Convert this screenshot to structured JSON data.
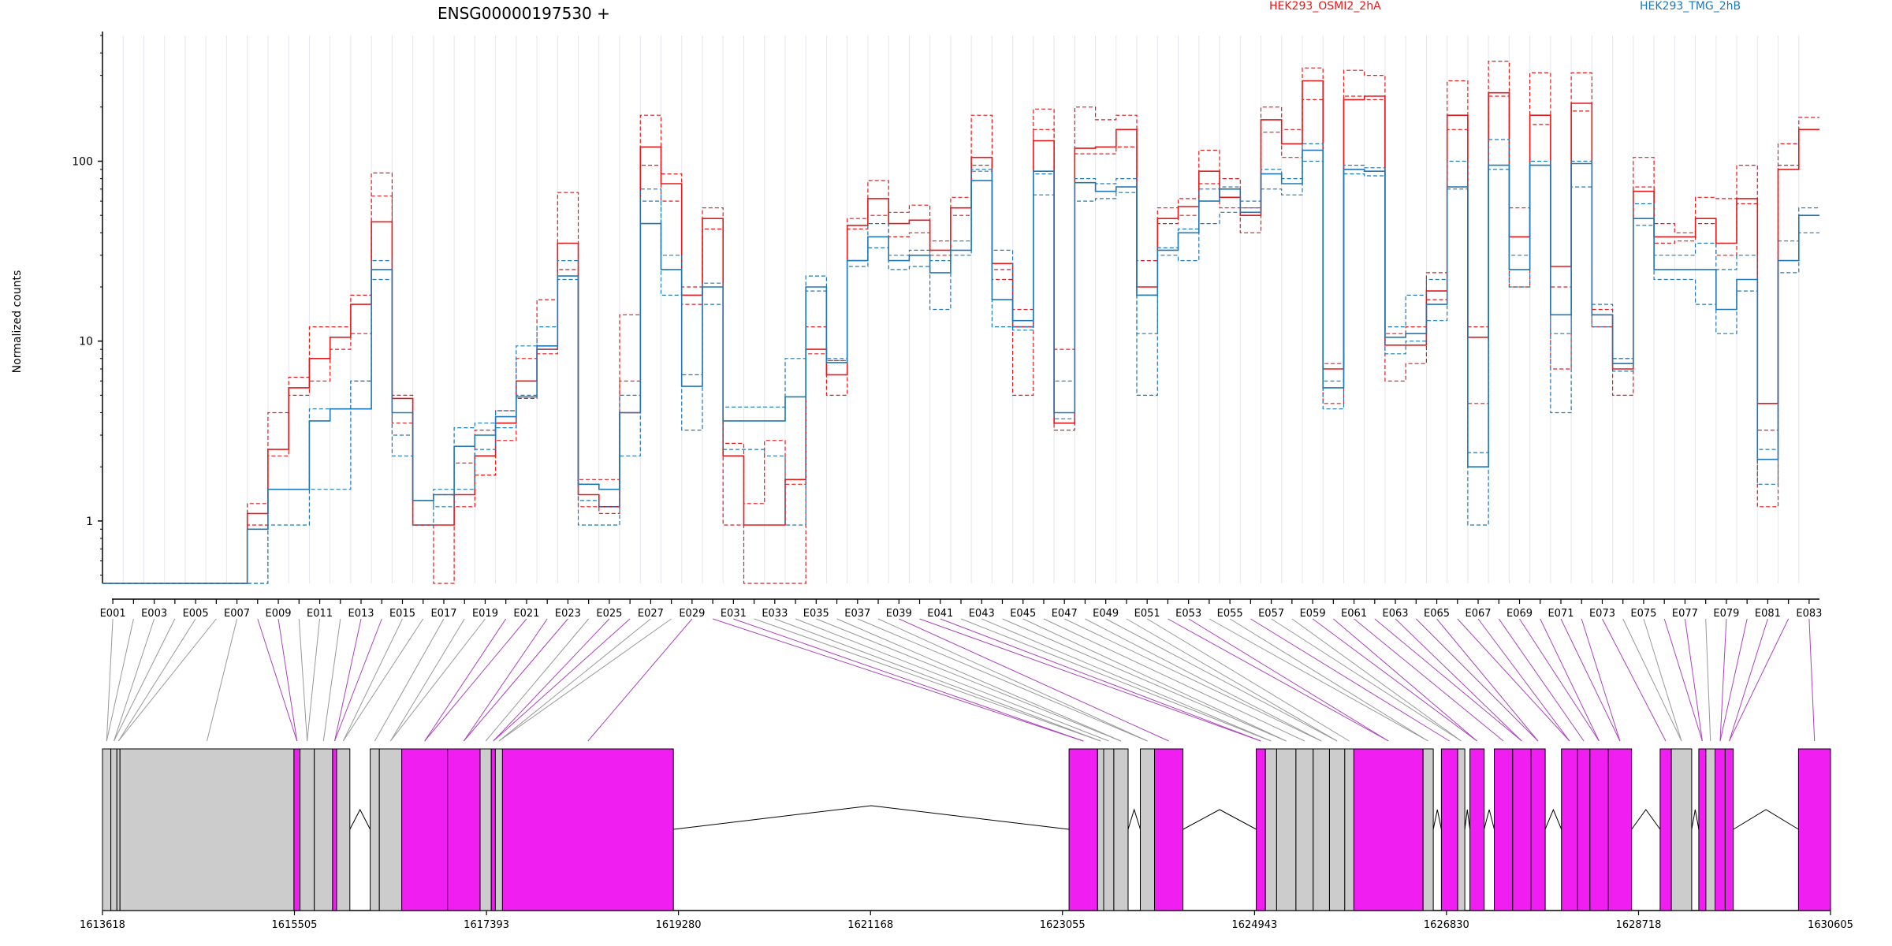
{
  "title": "ENSG00000197530 +",
  "colors": {
    "osmi": "#e31a1c",
    "tmg": "#1f78b4",
    "exon_fill": "#cccccc",
    "exon_de": "#f01ef0",
    "connector_plain": "#999999",
    "connector_de": "#aa44bb"
  },
  "chart_data": [
    {
      "type": "line",
      "ylabel": "Normalized counts",
      "yscale": "log",
      "ylim": [
        0.45,
        500
      ],
      "yticks": [
        "1",
        "10",
        "100"
      ],
      "legend_placement": "top",
      "categories": [
        "E001",
        "E002",
        "E003",
        "E004",
        "E005",
        "E006",
        "E007",
        "E008",
        "E009",
        "E010",
        "E011",
        "E012",
        "E013",
        "E014",
        "E015",
        "E016",
        "E017",
        "E018",
        "E019",
        "E020",
        "E021",
        "E022",
        "E023",
        "E024",
        "E025",
        "E026",
        "E027",
        "E028",
        "E029",
        "E030",
        "E031",
        "E032",
        "E033",
        "E034",
        "E035",
        "E036",
        "E037",
        "E038",
        "E039",
        "E040",
        "E041",
        "E042",
        "E043",
        "E044",
        "E045",
        "E046",
        "E047",
        "E048",
        "E049",
        "E050",
        "E051",
        "E052",
        "E053",
        "E054",
        "E055",
        "E056",
        "E057",
        "E058",
        "E059",
        "E060",
        "E061",
        "E062",
        "E063",
        "E064",
        "E065",
        "E066",
        "E067",
        "E068",
        "E069",
        "E070",
        "E071",
        "E072",
        "E073",
        "E074",
        "E075",
        "E076",
        "E077",
        "E078",
        "E079",
        "E080",
        "E081",
        "E082",
        "E083"
      ],
      "xtick_labels": [
        "E001",
        "E003",
        "E005",
        "E007",
        "E009",
        "E011",
        "E013",
        "E015",
        "E017",
        "E019",
        "E021",
        "E023",
        "E025",
        "E027",
        "E029",
        "E031",
        "E033",
        "E035",
        "E037",
        "E039",
        "E041",
        "E043",
        "E045",
        "E047",
        "E049",
        "E051",
        "E053",
        "E055",
        "E057",
        "E059",
        "E061",
        "E063",
        "E065",
        "E067",
        "E069",
        "E071",
        "E073",
        "E075",
        "E077",
        "E079",
        "E081",
        "E083"
      ],
      "series": [
        {
          "name": "HEK293_OSMI2_2hA",
          "color": "#e31a1c",
          "style": "solid",
          "values": [
            0.45,
            0.45,
            0.45,
            0.45,
            0.45,
            0.45,
            0.45,
            1.1,
            2.5,
            5.5,
            8,
            10.5,
            16,
            46,
            4.8,
            0.95,
            0.95,
            1.4,
            2.3,
            3.5,
            6,
            9,
            35,
            1.4,
            1.2,
            4,
            120,
            75,
            18,
            48,
            2.3,
            0.95,
            0.95,
            1.7,
            9,
            6.5,
            44,
            62,
            45,
            47,
            32,
            55,
            105,
            27,
            12,
            130,
            3.5,
            118,
            120,
            150,
            20,
            48,
            56,
            88,
            63,
            50,
            170,
            125,
            280,
            7,
            220,
            230,
            9.5,
            9.5,
            19,
            180,
            10.5,
            240,
            38,
            180,
            26,
            210,
            14,
            7,
            68,
            38,
            38,
            48,
            35,
            62,
            4.5,
            90,
            150
          ]
        },
        {
          "name": "HEK293_OSMI2_2hA",
          "color": "#e31a1c",
          "style": "dashed",
          "values": [
            0.45,
            0.45,
            0.45,
            0.45,
            0.45,
            0.45,
            0.45,
            1.25,
            4,
            6.3,
            12,
            12,
            18,
            86,
            5,
            1.3,
            1.4,
            2.1,
            3.2,
            4.1,
            8,
            17,
            67,
            1.7,
            1.7,
            14,
            180,
            85,
            20,
            55,
            2.7,
            1.25,
            2.8,
            1.6,
            12,
            7.8,
            48,
            78,
            52,
            57,
            36,
            63,
            180,
            22,
            5,
            195,
            9,
            200,
            170,
            180,
            28,
            55,
            62,
            115,
            80,
            55,
            200,
            150,
            330,
            7.5,
            320,
            300,
            11,
            12,
            24,
            280,
            12,
            360,
            55,
            310,
            20,
            310,
            15,
            8,
            105,
            45,
            40,
            63,
            62,
            95,
            3.2,
            125,
            175
          ]
        },
        {
          "name": "HEK293_OSMI2_2hA",
          "color": "#e31a1c",
          "style": "dashed",
          "values": [
            0.45,
            0.45,
            0.45,
            0.45,
            0.45,
            0.45,
            0.45,
            0.95,
            2.3,
            5,
            6,
            9,
            11,
            64,
            3.5,
            0.95,
            0.45,
            1.2,
            1.8,
            2.8,
            4.8,
            8.5,
            25,
            1.2,
            1.1,
            6,
            95,
            60,
            16,
            42,
            0.95,
            0.45,
            0.45,
            0.45,
            8.5,
            5,
            42,
            50,
            38,
            40,
            30,
            50,
            95,
            25,
            15,
            150,
            3.2,
            110,
            110,
            120,
            18,
            45,
            50,
            75,
            55,
            40,
            145,
            105,
            220,
            4.5,
            230,
            220,
            6,
            7.5,
            17,
            150,
            4.5,
            230,
            20,
            160,
            7,
            190,
            12,
            5,
            72,
            35,
            36,
            45,
            30,
            58,
            1.2,
            95,
            150
          ]
        },
        {
          "name": "HEK293_TMG_2hB",
          "color": "#1f78b4",
          "style": "solid",
          "values": [
            0.45,
            0.45,
            0.45,
            0.45,
            0.45,
            0.45,
            0.45,
            0.9,
            1.5,
            1.5,
            3.6,
            4.2,
            4.2,
            25,
            4,
            1.3,
            1.4,
            2.6,
            3,
            3.8,
            4.9,
            9.4,
            23,
            1.6,
            1.5,
            4,
            45,
            25,
            5.6,
            20,
            3.6,
            3.6,
            3.6,
            4.9,
            20,
            7.6,
            28,
            38,
            28,
            30,
            24,
            32,
            78,
            17,
            13,
            88,
            4,
            76,
            68,
            72,
            18,
            32,
            40,
            60,
            70,
            52,
            85,
            75,
            115,
            5.5,
            90,
            88,
            10.5,
            11,
            16,
            72,
            2,
            95,
            25,
            95,
            14,
            97,
            14,
            7.5,
            48,
            25,
            25,
            25,
            15,
            22,
            2.2,
            28,
            50
          ]
        },
        {
          "name": "HEK293_TMG_2hB",
          "color": "#1f78b4",
          "style": "dashed",
          "values": [
            0.45,
            0.45,
            0.45,
            0.45,
            0.45,
            0.45,
            0.45,
            0.45,
            0.95,
            0.95,
            1.5,
            1.5,
            6,
            22,
            3,
            0.95,
            1.5,
            1.5,
            2.5,
            3.3,
            5,
            9,
            22,
            0.95,
            0.95,
            2.3,
            60,
            18,
            3.2,
            16,
            2.5,
            2.5,
            2.3,
            0.95,
            19,
            7.8,
            26,
            33,
            25,
            26,
            15,
            30,
            90,
            12,
            11.5,
            65,
            3.7,
            60,
            62,
            67,
            5,
            30,
            28,
            45,
            52,
            55,
            70,
            65,
            100,
            4.2,
            85,
            83,
            8.5,
            10,
            13,
            70,
            0.95,
            90,
            20,
            95,
            4,
            72,
            12,
            6.8,
            44,
            22,
            22,
            16,
            11,
            19,
            1.6,
            24,
            40
          ]
        },
        {
          "name": "HEK293_TMG_2hB",
          "color": "#1f78b4",
          "style": "dashed",
          "values": [
            0.45,
            0.45,
            0.45,
            0.45,
            0.45,
            0.45,
            0.45,
            0.45,
            1.5,
            1.5,
            4.2,
            4.2,
            6,
            28,
            2.3,
            1.3,
            1.2,
            3.3,
            3.5,
            4.1,
            9.4,
            12,
            28,
            1.3,
            1.2,
            5,
            70,
            30,
            6.5,
            21,
            4.3,
            4.3,
            4.3,
            8,
            23,
            8,
            28,
            45,
            30,
            32,
            28,
            36,
            88,
            32,
            12,
            85,
            6,
            80,
            75,
            80,
            11,
            33,
            42,
            70,
            72,
            60,
            90,
            80,
            125,
            6,
            95,
            92,
            12,
            18,
            22,
            100,
            2.4,
            132,
            30,
            100,
            11,
            100,
            16,
            8,
            58,
            30,
            30,
            35,
            25,
            30,
            2.5,
            36,
            55
          ]
        }
      ]
    },
    {
      "type": "gene_model",
      "x_range": [
        1613618,
        1630605
      ],
      "xtick_labels": [
        "1613618",
        "1615505",
        "1617393",
        "1619280",
        "1621168",
        "1623055",
        "1624943",
        "1626830",
        "1628718",
        "1630605"
      ],
      "exons": [
        {
          "start": 1613618,
          "end": 1613700,
          "de": false
        },
        {
          "start": 1613700,
          "end": 1613760,
          "de": false
        },
        {
          "start": 1613760,
          "end": 1613790,
          "de": false
        },
        {
          "start": 1613790,
          "end": 1615500,
          "de": false
        },
        {
          "start": 1615500,
          "end": 1615560,
          "de": true
        },
        {
          "start": 1615560,
          "end": 1615700,
          "de": false
        },
        {
          "start": 1615700,
          "end": 1615880,
          "de": false
        },
        {
          "start": 1615880,
          "end": 1615920,
          "de": true
        },
        {
          "start": 1615920,
          "end": 1616050,
          "de": false
        },
        {
          "start": 1616250,
          "end": 1616340,
          "de": false
        },
        {
          "start": 1616340,
          "end": 1616560,
          "de": false
        },
        {
          "start": 1616560,
          "end": 1617010,
          "de": true
        },
        {
          "start": 1617010,
          "end": 1617330,
          "de": true
        },
        {
          "start": 1617330,
          "end": 1617440,
          "de": false
        },
        {
          "start": 1617440,
          "end": 1617480,
          "de": true
        },
        {
          "start": 1617480,
          "end": 1617550,
          "de": false
        },
        {
          "start": 1617550,
          "end": 1619230,
          "de": true
        },
        {
          "start": 1623120,
          "end": 1623400,
          "de": true
        },
        {
          "start": 1623400,
          "end": 1623460,
          "de": false
        },
        {
          "start": 1623460,
          "end": 1623560,
          "de": false
        },
        {
          "start": 1623560,
          "end": 1623700,
          "de": false
        },
        {
          "start": 1623820,
          "end": 1623960,
          "de": false
        },
        {
          "start": 1623960,
          "end": 1624240,
          "de": true
        },
        {
          "start": 1624960,
          "end": 1625050,
          "de": true
        },
        {
          "start": 1625050,
          "end": 1625160,
          "de": false
        },
        {
          "start": 1625160,
          "end": 1625350,
          "de": false
        },
        {
          "start": 1625350,
          "end": 1625520,
          "de": false
        },
        {
          "start": 1625520,
          "end": 1625680,
          "de": false
        },
        {
          "start": 1625680,
          "end": 1625830,
          "de": false
        },
        {
          "start": 1625830,
          "end": 1625920,
          "de": false
        },
        {
          "start": 1625920,
          "end": 1626600,
          "de": true
        },
        {
          "start": 1626600,
          "end": 1626700,
          "de": false
        },
        {
          "start": 1626780,
          "end": 1626940,
          "de": true
        },
        {
          "start": 1626940,
          "end": 1627010,
          "de": false
        },
        {
          "start": 1627060,
          "end": 1627200,
          "de": true
        },
        {
          "start": 1627300,
          "end": 1627480,
          "de": true
        },
        {
          "start": 1627480,
          "end": 1627660,
          "de": true
        },
        {
          "start": 1627660,
          "end": 1627800,
          "de": true
        },
        {
          "start": 1627960,
          "end": 1628120,
          "de": true
        },
        {
          "start": 1628120,
          "end": 1628240,
          "de": true
        },
        {
          "start": 1628240,
          "end": 1628420,
          "de": true
        },
        {
          "start": 1628420,
          "end": 1628650,
          "de": true
        },
        {
          "start": 1628930,
          "end": 1629040,
          "de": true
        },
        {
          "start": 1629040,
          "end": 1629240,
          "de": false
        },
        {
          "start": 1629310,
          "end": 1629380,
          "de": true
        },
        {
          "start": 1629380,
          "end": 1629470,
          "de": false
        },
        {
          "start": 1629470,
          "end": 1629570,
          "de": true
        },
        {
          "start": 1629570,
          "end": 1629650,
          "de": true
        },
        {
          "start": 1630290,
          "end": 1630605,
          "de": true
        }
      ]
    }
  ]
}
